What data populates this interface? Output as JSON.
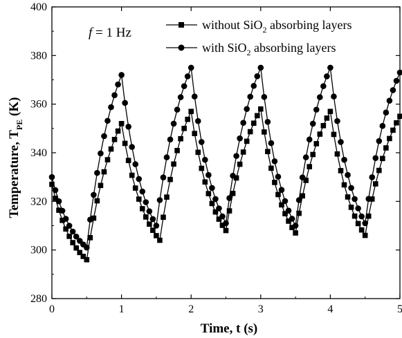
{
  "chart_data": {
    "type": "line",
    "title": "",
    "annotation": {
      "italic_part": "f",
      "rest": " = 1 Hz"
    },
    "xlabel": "Time, t (s)",
    "ylabel": {
      "main": "Temperature, T",
      "subscript": "PE",
      "unit": " (K)"
    },
    "xlim": [
      0,
      5
    ],
    "ylim": [
      280,
      400
    ],
    "xticks": [
      0,
      1,
      2,
      3,
      4,
      5
    ],
    "yticks": [
      280,
      300,
      320,
      340,
      360,
      380,
      400
    ],
    "grid": false,
    "legend_position": "top-right",
    "series": [
      {
        "name_parts": [
          "without SiO",
          "2",
          " absorbing layers"
        ],
        "marker": "square",
        "color": "#000000",
        "peaks": [
          {
            "t": 1.0,
            "T": 352
          },
          {
            "t": 2.0,
            "T": 357
          },
          {
            "t": 3.0,
            "T": 358
          },
          {
            "t": 4.0,
            "T": 357
          }
        ],
        "troughs": [
          {
            "t": 0.5,
            "T": 296
          },
          {
            "t": 1.55,
            "T": 304
          },
          {
            "t": 2.5,
            "T": 308
          },
          {
            "t": 3.5,
            "T": 307
          },
          {
            "t": 4.5,
            "T": 306
          }
        ],
        "start": {
          "t": 0.0,
          "T": 327
        },
        "end": {
          "t": 5.0,
          "T": 355
        }
      },
      {
        "name_parts": [
          "with SiO",
          "2",
          " absorbing layers"
        ],
        "marker": "circle",
        "color": "#000000",
        "peaks": [
          {
            "t": 1.0,
            "T": 372
          },
          {
            "t": 2.0,
            "T": 375
          },
          {
            "t": 3.0,
            "T": 375
          },
          {
            "t": 4.0,
            "T": 375
          }
        ],
        "troughs": [
          {
            "t": 0.5,
            "T": 301
          },
          {
            "t": 1.5,
            "T": 310
          },
          {
            "t": 2.5,
            "T": 311
          },
          {
            "t": 3.5,
            "T": 310
          },
          {
            "t": 4.5,
            "T": 311
          }
        ],
        "start": {
          "t": 0.0,
          "T": 330
        },
        "end": {
          "t": 5.0,
          "T": 373
        }
      }
    ]
  }
}
